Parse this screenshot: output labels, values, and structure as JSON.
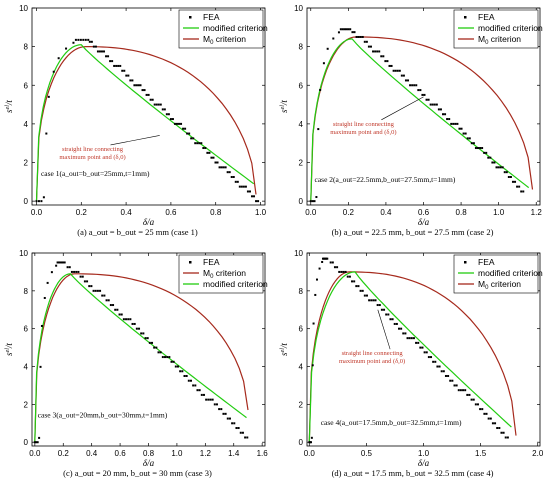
{
  "chart_data": [
    {
      "type": "scatter",
      "panel": "a",
      "caption": "(a) a_out = b_out = 25 mm (case 1)",
      "case_text": "case 1(a_out=b_out=25mm,t=1mm)",
      "annotation": [
        "straight line connecting",
        "maximum point and (δ,0)"
      ],
      "xlabel": "δ/a",
      "ylabel": "s^{el}/t",
      "xlim": [
        -0.02,
        1.02
      ],
      "ylim": [
        -0.2,
        10
      ],
      "xticks": [
        0.0,
        0.2,
        0.4,
        0.6,
        0.8,
        1.0
      ],
      "yticks": [
        0,
        2,
        4,
        6,
        8,
        10
      ],
      "legend": [
        "FEA",
        "modified criterion",
        "M0 criterion"
      ],
      "fea": {
        "start": [
          0,
          0
        ],
        "pmax": [
          0.22,
          8.35
        ],
        "end": [
          0.98,
          0.0
        ]
      },
      "modified": {
        "pmax": [
          0.2,
          8.1
        ],
        "end": [
          0.97,
          0.9
        ]
      },
      "m0": {
        "pmax": [
          0.22,
          8.0
        ],
        "end": [
          0.98,
          0.35
        ]
      }
    },
    {
      "type": "scatter",
      "panel": "b",
      "caption": "(b) a_out = 22.5 mm, b_out = 27.5 mm (case 2)",
      "case_text": "case 2(a_out=22.5mm,b_out=27.5mm,t=1mm)",
      "annotation": [
        "straight line connecting",
        "maximum point and (δ,0)"
      ],
      "xlabel": "δ/a",
      "ylabel": "s^{el}/t",
      "xlim": [
        -0.02,
        1.22
      ],
      "ylim": [
        -0.2,
        10
      ],
      "xticks": [
        0.0,
        0.2,
        0.4,
        0.6,
        0.8,
        1.0,
        1.2
      ],
      "yticks": [
        0,
        2,
        4,
        6,
        8,
        10
      ],
      "legend": [
        "FEA",
        "modified criterion",
        "M0 criterion"
      ],
      "fea": {
        "start": [
          0,
          0
        ],
        "pmax": [
          0.2,
          8.9
        ],
        "end": [
          1.12,
          0.6
        ]
      },
      "modified": {
        "pmax": [
          0.22,
          8.4
        ],
        "end": [
          1.16,
          0.7
        ]
      },
      "m0": {
        "pmax": [
          0.24,
          8.5
        ],
        "end": [
          1.18,
          0.6
        ]
      }
    },
    {
      "type": "scatter",
      "panel": "c",
      "caption": "(c) a_out = 20 mm, b_out = 30 mm (case 3)",
      "case_text": "case 3(a_out=20mm,b_out=30mm,t=1mm)",
      "annotation": [],
      "xlabel": "δ/a",
      "ylabel": "s^{el}/t",
      "xlim": [
        -0.02,
        1.62
      ],
      "ylim": [
        -0.2,
        10
      ],
      "xticks": [
        0.0,
        0.2,
        0.4,
        0.6,
        0.8,
        1.0,
        1.2,
        1.4,
        1.6
      ],
      "yticks": [
        0,
        2,
        4,
        6,
        8,
        10
      ],
      "legend": [
        "FEA",
        "modified criterion",
        "M0 criterion"
      ],
      "fea": {
        "start": [
          0,
          0
        ],
        "pmax": [
          0.2,
          9.5
        ],
        "end": [
          1.48,
          0.3
        ]
      },
      "modified": {
        "pmax": [
          0.25,
          8.9
        ],
        "end": [
          1.49,
          1.3
        ]
      },
      "m0": {
        "pmax": [
          0.28,
          8.9
        ],
        "end": [
          1.5,
          1.7
        ]
      }
    },
    {
      "type": "scatter",
      "panel": "d",
      "caption": "(d) a_out = 17.5 mm, b_out = 32.5 mm (case 4)",
      "case_text": "case 4(a_out=17.5mm,b_out=32.5mm,t=1mm)",
      "annotation": [
        "straight line connecting",
        "maximum point and (δ,0)"
      ],
      "xlabel": "δ/a",
      "ylabel": "s^{el}/t",
      "xlim": [
        -0.02,
        2.02
      ],
      "ylim": [
        -0.2,
        10
      ],
      "xticks": [
        0.0,
        0.5,
        1.0,
        1.5,
        2.0
      ],
      "yticks": [
        0,
        2,
        4,
        6,
        8,
        10
      ],
      "legend": [
        "FEA",
        "modified criterion",
        "M0 criterion"
      ],
      "fea": {
        "start": [
          0,
          0
        ],
        "pmax": [
          0.15,
          9.7
        ],
        "end": [
          1.72,
          0.3
        ]
      },
      "modified": {
        "pmax": [
          0.4,
          9.0
        ],
        "end": [
          1.77,
          0.8
        ]
      },
      "m0": {
        "pmax": [
          0.35,
          9.0
        ],
        "end": [
          1.81,
          0.35
        ]
      }
    }
  ],
  "colors": {
    "modified": "#22cc11",
    "m0": "#a62a1d",
    "fea": "#000000",
    "annot": "#c0392b"
  }
}
